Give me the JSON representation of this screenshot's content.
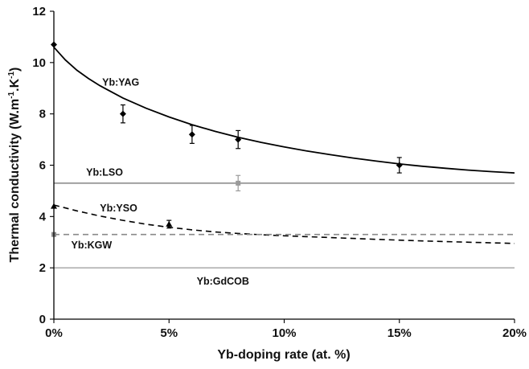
{
  "chart_data": {
    "type": "line",
    "title": "",
    "xlabel": "Yb-doping rate (at. %)",
    "ylabel": "Thermal conductivity (W.m",
    "ylabel_sup1": "-1",
    "ylabel_mid": ".K",
    "ylabel_sup2": "-1",
    "ylabel_end": ")",
    "xlim": [
      0,
      20
    ],
    "ylim": [
      0,
      12
    ],
    "x_ticks": [
      0,
      5,
      10,
      15,
      20
    ],
    "x_tick_labels": [
      "0%",
      "5%",
      "10%",
      "15%",
      "20%"
    ],
    "y_ticks": [
      0,
      2,
      4,
      6,
      8,
      10,
      12
    ],
    "y_tick_labels": [
      "0",
      "2",
      "4",
      "6",
      "8",
      "10",
      "12"
    ],
    "grid": false,
    "series": [
      {
        "name": "Yb:YAG",
        "style": "solid",
        "color": "#000000",
        "fit_x": [
          0,
          0.5,
          1,
          1.5,
          2,
          3,
          4,
          5,
          6,
          7,
          8,
          9,
          10,
          11,
          12,
          13,
          14,
          15,
          16,
          17,
          18,
          19,
          20
        ],
        "fit_y": [
          10.6,
          10.1,
          9.7,
          9.38,
          9.1,
          8.62,
          8.22,
          7.88,
          7.58,
          7.32,
          7.09,
          6.89,
          6.71,
          6.55,
          6.41,
          6.28,
          6.16,
          6.05,
          5.96,
          5.88,
          5.81,
          5.75,
          5.7
        ],
        "points": [
          {
            "x": 0,
            "y": 10.7,
            "err": 0
          },
          {
            "x": 3,
            "y": 8.0,
            "err": 0.35
          },
          {
            "x": 6,
            "y": 7.2,
            "err": 0.35
          },
          {
            "x": 8,
            "y": 7.0,
            "err": 0.35
          },
          {
            "x": 15,
            "y": 6.0,
            "err": 0.3
          }
        ]
      },
      {
        "name": "Yb:LSO",
        "style": "solid",
        "color": "#9a9a9a",
        "fit_x": [
          0,
          20
        ],
        "fit_y": [
          5.3,
          5.3
        ],
        "points": [
          {
            "x": 8,
            "y": 5.3,
            "err": 0.3
          }
        ]
      },
      {
        "name": "Yb:YSO",
        "style": "dashed",
        "color": "#000000",
        "fit_x": [
          0,
          1,
          2,
          3,
          4,
          5,
          6,
          7,
          8,
          9,
          10,
          12,
          14,
          16,
          18,
          20
        ],
        "fit_y": [
          4.45,
          4.22,
          4.02,
          3.85,
          3.7,
          3.58,
          3.48,
          3.4,
          3.34,
          3.29,
          3.25,
          3.18,
          3.11,
          3.05,
          3.0,
          2.95
        ],
        "points": [
          {
            "x": 0,
            "y": 4.4,
            "err": 0
          },
          {
            "x": 5,
            "y": 3.7,
            "err": 0.15
          }
        ]
      },
      {
        "name": "Yb:KGW",
        "style": "dashed",
        "color": "#8a8a8a",
        "fit_x": [
          0,
          20
        ],
        "fit_y": [
          3.3,
          3.3
        ],
        "points": [
          {
            "x": 0,
            "y": 3.3,
            "err": 0
          }
        ]
      },
      {
        "name": "Yb:GdCOB",
        "style": "solid",
        "color": "#b8b8b8",
        "fit_x": [
          0,
          20
        ],
        "fit_y": [
          2.0,
          2.0
        ],
        "points": []
      }
    ],
    "annotations": [
      {
        "text": "Yb:YAG",
        "x": 2.1,
        "y": 9.1
      },
      {
        "text": "Yb:LSO",
        "x": 1.4,
        "y": 5.6
      },
      {
        "text": "Yb:YSO",
        "x": 2.0,
        "y": 4.2
      },
      {
        "text": "Yb:KGW",
        "x": 0.75,
        "y": 2.75
      },
      {
        "text": "Yb:GdCOB",
        "x": 6.2,
        "y": 1.35
      }
    ]
  }
}
